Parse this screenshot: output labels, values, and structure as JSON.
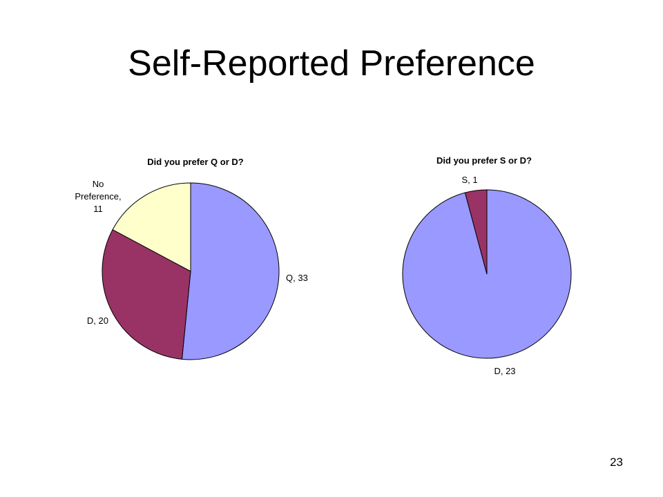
{
  "slide": {
    "title": "Self-Reported Preference",
    "page_number": "23"
  },
  "colors": {
    "blue": "#9999ff",
    "plum": "#993366",
    "cream": "#ffffcc",
    "outline": "#000000"
  },
  "chart_data": [
    {
      "type": "pie",
      "title": "Did you prefer Q or D?",
      "start_angle_deg": 0,
      "direction": "clockwise",
      "slices": [
        {
          "label": "Q",
          "value": 33,
          "color": "#9999ff",
          "label_lines": [
            "Q, 33"
          ]
        },
        {
          "label": "D",
          "value": 20,
          "color": "#993366",
          "label_lines": [
            "D, 20"
          ]
        },
        {
          "label": "No Preference",
          "value": 11,
          "color": "#ffffcc",
          "label_lines": [
            "No",
            "Preference,",
            "11"
          ]
        }
      ]
    },
    {
      "type": "pie",
      "title": "Did you prefer S or D?",
      "start_angle_deg": 0,
      "direction": "clockwise",
      "slices": [
        {
          "label": "D",
          "value": 23,
          "color": "#9999ff",
          "label_lines": [
            "D, 23"
          ]
        },
        {
          "label": "S",
          "value": 1,
          "color": "#993366",
          "label_lines": [
            "S, 1"
          ]
        }
      ]
    }
  ]
}
